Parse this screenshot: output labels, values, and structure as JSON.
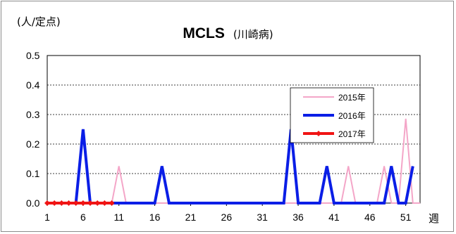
{
  "chart_data": {
    "type": "line",
    "unit_label": "(人/定点)",
    "title": "MCLS",
    "subtitle": "(川崎病)",
    "xlabel": "週",
    "xlim": [
      1,
      53
    ],
    "ylim": [
      0,
      0.5
    ],
    "x_ticks": [
      1,
      6,
      11,
      16,
      21,
      26,
      31,
      36,
      41,
      46,
      51
    ],
    "y_ticks": [
      0.0,
      0.1,
      0.2,
      0.3,
      0.4,
      0.5
    ],
    "y_tick_labels": [
      "0.0",
      "0.1",
      "0.2",
      "0.3",
      "0.4",
      "0.5"
    ],
    "grid": "horizontal dashed",
    "legend_position": "right",
    "series": [
      {
        "name": "2015年",
        "color": "#f4a6c8",
        "line_width": 2,
        "marker": "none",
        "x": [
          1,
          2,
          3,
          4,
          5,
          6,
          7,
          8,
          9,
          10,
          11,
          12,
          13,
          14,
          15,
          16,
          17,
          18,
          19,
          20,
          21,
          22,
          23,
          24,
          25,
          26,
          27,
          28,
          29,
          30,
          31,
          32,
          33,
          34,
          35,
          36,
          37,
          38,
          39,
          40,
          41,
          42,
          43,
          44,
          45,
          46,
          47,
          48,
          49,
          50,
          51,
          52,
          53
        ],
        "values": [
          0,
          0,
          0,
          0,
          0,
          0,
          0,
          0,
          0,
          0,
          0.125,
          0,
          0,
          0,
          0,
          0,
          0,
          0,
          0,
          0,
          0,
          0,
          0,
          0,
          0,
          0,
          0,
          0,
          0,
          0,
          0,
          0,
          0,
          0,
          0,
          0,
          0,
          0,
          0,
          0,
          0,
          0,
          0.125,
          0,
          0,
          0,
          0,
          0.125,
          0,
          0,
          0.286,
          0,
          0
        ]
      },
      {
        "name": "2016年",
        "color": "#0a1ee6",
        "line_width": 4,
        "marker": "none",
        "x": [
          5,
          6,
          7,
          8,
          9,
          10,
          11,
          12,
          13,
          14,
          15,
          16,
          17,
          18,
          19,
          20,
          21,
          22,
          23,
          24,
          25,
          26,
          27,
          28,
          29,
          30,
          31,
          32,
          33,
          34,
          35,
          36,
          37,
          38,
          39,
          40,
          41,
          42,
          43,
          44,
          45,
          46,
          47,
          48,
          49,
          50,
          51,
          52
        ],
        "values": [
          0,
          0.25,
          0,
          0,
          0,
          0,
          0,
          0,
          0,
          0,
          0,
          0,
          0.125,
          0,
          0,
          0,
          0,
          0,
          0,
          0,
          0,
          0,
          0,
          0,
          0,
          0,
          0,
          0,
          0,
          0,
          0.25,
          0,
          0,
          0,
          0,
          0.125,
          0,
          0,
          0,
          0,
          0,
          0,
          0,
          0,
          0.125,
          0,
          0,
          0.125
        ]
      },
      {
        "name": "2017年",
        "color": "#f01414",
        "line_width": 4,
        "marker": "diamond",
        "x": [
          1,
          2,
          3,
          4,
          5,
          6,
          7,
          8,
          9,
          10
        ],
        "values": [
          0,
          0,
          0,
          0,
          0,
          0,
          0,
          0,
          0,
          0
        ]
      }
    ]
  }
}
